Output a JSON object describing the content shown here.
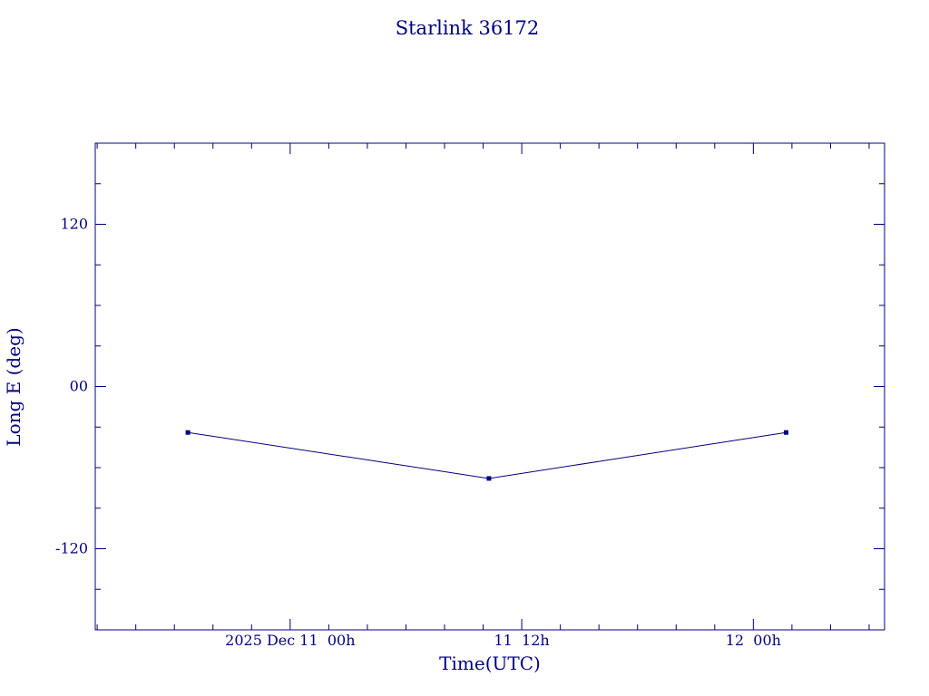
{
  "colors": {
    "ink": "#000080",
    "background": "#ffffff"
  },
  "chart_data": {
    "type": "line",
    "title": "Starlink 36172",
    "xlabel": "Time(UTC)",
    "ylabel": "Long E (deg)",
    "x_axis": {
      "description": "hours relative to 2025 Dec 11 00h UTC",
      "range": [
        -10.1,
        30.8
      ],
      "minor_tick_interval": 2,
      "major_ticks": [
        {
          "t": 0,
          "label": "2025 Dec 11  00h"
        },
        {
          "t": 12,
          "label": "11  12h"
        },
        {
          "t": 24,
          "label": "12  00h"
        }
      ]
    },
    "y_axis": {
      "range": [
        -180,
        180
      ],
      "minor_tick_interval": 30,
      "major_ticks": [
        {
          "v": 120,
          "label": "120"
        },
        {
          "v": 0,
          "label": "00"
        },
        {
          "v": -120,
          "label": "-120"
        }
      ]
    },
    "grid": false,
    "legend": null,
    "series": [
      {
        "name": "Long E (deg)",
        "marker": "square",
        "points": [
          {
            "t": -5.3,
            "value": -34
          },
          {
            "t": 10.3,
            "value": -68
          },
          {
            "t": 25.7,
            "value": -34
          }
        ]
      }
    ]
  }
}
